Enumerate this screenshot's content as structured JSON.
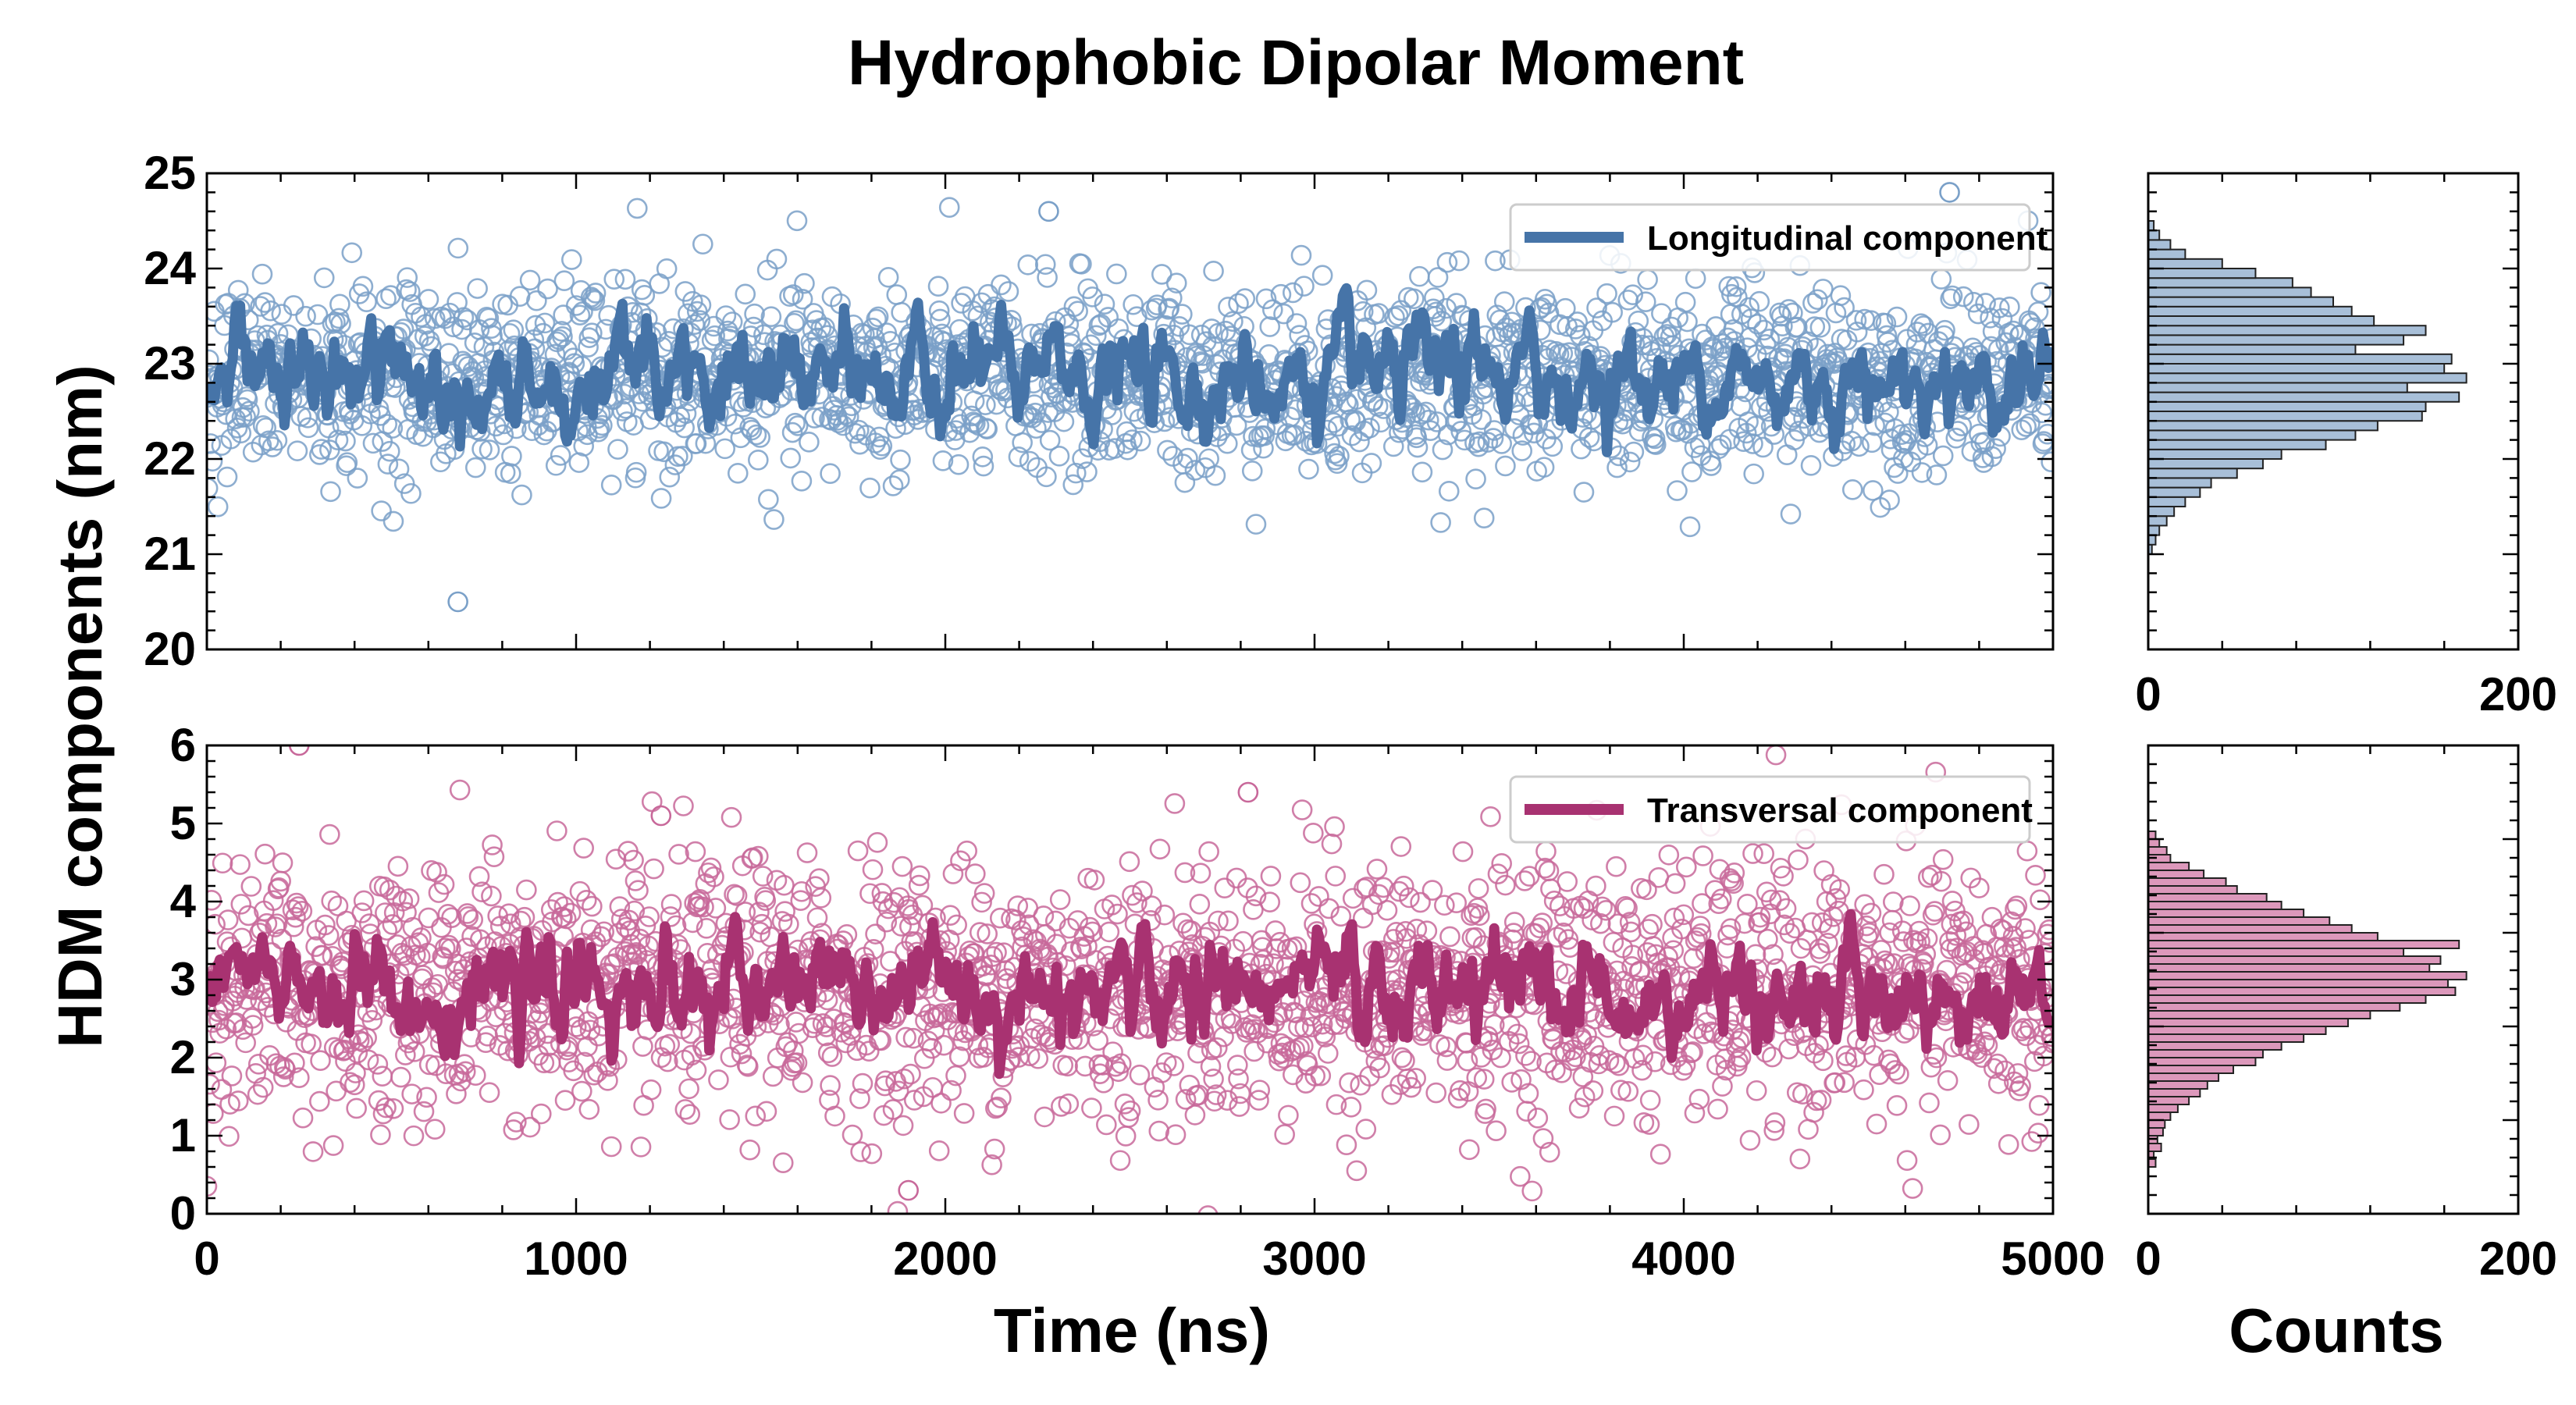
{
  "title": "Hydrophobic Dipolar Moment",
  "ylabel": "HDM components (nm)",
  "xlabel": "Time (ns)",
  "hist_xlabel": "Counts",
  "colors": {
    "longitudinal": "#4674a8",
    "longitudinal_points": "#7aa0c8",
    "longitudinal_hist": "#a8bfd8",
    "transversal": "#a83271",
    "transversal_points": "#c8689a",
    "transversal_hist": "#dc98bb"
  },
  "chart_data": [
    {
      "type": "scatter",
      "panel": "top",
      "legend": "Longitudinal component",
      "legend_position": "top-right",
      "x_range": [
        0,
        5000
      ],
      "y_range": [
        20,
        25
      ],
      "x_ticks": [
        "0",
        "1000",
        "2000",
        "3000",
        "4000",
        "5000"
      ],
      "y_ticks": [
        "20",
        "21",
        "22",
        "23",
        "24",
        "25"
      ],
      "samples": 2000,
      "mean": 22.85,
      "spread": 0.5,
      "moving_mean_amplitude": 0.35,
      "outliers": [
        [
          680,
          20.5
        ],
        [
          2280,
          24.6
        ],
        [
          4720,
          24.8
        ]
      ]
    },
    {
      "type": "scatter",
      "panel": "bottom",
      "legend": "Transversal component",
      "legend_position": "top-right",
      "x_range": [
        0,
        5000
      ],
      "y_range": [
        0,
        6
      ],
      "x_ticks": [
        "0",
        "1000",
        "2000",
        "3000",
        "4000",
        "5000"
      ],
      "y_ticks": [
        "0",
        "1",
        "2",
        "3",
        "4",
        "5",
        "6"
      ],
      "samples": 2000,
      "mean": 2.85,
      "spread": 0.85,
      "moving_mean_amplitude": 0.45,
      "outliers": [
        [
          250,
          6.0
        ],
        [
          1900,
          0.3
        ],
        [
          2820,
          5.4
        ],
        [
          1230,
          5.1
        ]
      ]
    },
    {
      "type": "bar",
      "orientation": "horizontal",
      "panel": "top-hist",
      "x_range": [
        0,
        200
      ],
      "x_ticks": [
        "0",
        "200"
      ],
      "bin_start": 21.0,
      "bin_width": 0.1,
      "counts": [
        2,
        4,
        6,
        10,
        14,
        20,
        28,
        34,
        48,
        62,
        72,
        96,
        112,
        124,
        148,
        150,
        168,
        140,
        172,
        160,
        164,
        112,
        138,
        150,
        122,
        110,
        100,
        88,
        78,
        58,
        40,
        20,
        12,
        6,
        3
      ]
    },
    {
      "type": "bar",
      "orientation": "horizontal",
      "panel": "bottom-hist",
      "x_range": [
        0,
        200
      ],
      "x_ticks": [
        "0",
        "200"
      ],
      "bin_start": 0.6,
      "bin_width": 0.1,
      "counts": [
        4,
        3,
        7,
        5,
        8,
        9,
        12,
        16,
        22,
        28,
        32,
        38,
        46,
        58,
        62,
        72,
        84,
        96,
        108,
        120,
        136,
        150,
        166,
        162,
        172,
        152,
        158,
        138,
        168,
        124,
        110,
        98,
        84,
        72,
        64,
        48,
        42,
        30,
        22,
        12,
        10,
        6,
        4
      ]
    }
  ]
}
